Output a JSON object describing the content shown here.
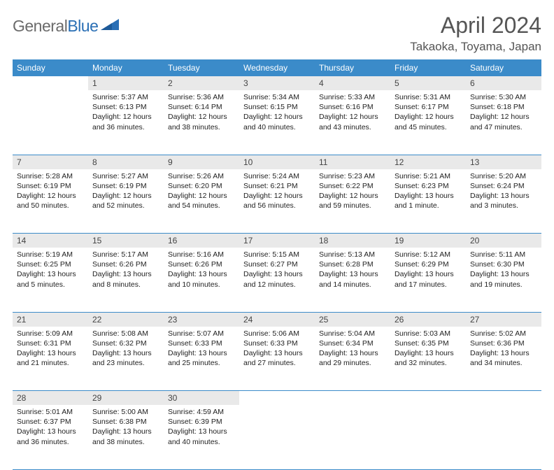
{
  "logo": {
    "text1": "General",
    "text2": "Blue"
  },
  "title": "April 2024",
  "location": "Takaoka, Toyama, Japan",
  "dayHeaders": [
    "Sunday",
    "Monday",
    "Tuesday",
    "Wednesday",
    "Thursday",
    "Friday",
    "Saturday"
  ],
  "colors": {
    "headerBg": "#3b8bc9",
    "dayBg": "#e9e9e9",
    "rule": "#3b8bc9"
  },
  "weeks": [
    [
      null,
      {
        "n": "1",
        "sr": "Sunrise: 5:37 AM",
        "ss": "Sunset: 6:13 PM",
        "d1": "Daylight: 12 hours",
        "d2": "and 36 minutes."
      },
      {
        "n": "2",
        "sr": "Sunrise: 5:36 AM",
        "ss": "Sunset: 6:14 PM",
        "d1": "Daylight: 12 hours",
        "d2": "and 38 minutes."
      },
      {
        "n": "3",
        "sr": "Sunrise: 5:34 AM",
        "ss": "Sunset: 6:15 PM",
        "d1": "Daylight: 12 hours",
        "d2": "and 40 minutes."
      },
      {
        "n": "4",
        "sr": "Sunrise: 5:33 AM",
        "ss": "Sunset: 6:16 PM",
        "d1": "Daylight: 12 hours",
        "d2": "and 43 minutes."
      },
      {
        "n": "5",
        "sr": "Sunrise: 5:31 AM",
        "ss": "Sunset: 6:17 PM",
        "d1": "Daylight: 12 hours",
        "d2": "and 45 minutes."
      },
      {
        "n": "6",
        "sr": "Sunrise: 5:30 AM",
        "ss": "Sunset: 6:18 PM",
        "d1": "Daylight: 12 hours",
        "d2": "and 47 minutes."
      }
    ],
    [
      {
        "n": "7",
        "sr": "Sunrise: 5:28 AM",
        "ss": "Sunset: 6:19 PM",
        "d1": "Daylight: 12 hours",
        "d2": "and 50 minutes."
      },
      {
        "n": "8",
        "sr": "Sunrise: 5:27 AM",
        "ss": "Sunset: 6:19 PM",
        "d1": "Daylight: 12 hours",
        "d2": "and 52 minutes."
      },
      {
        "n": "9",
        "sr": "Sunrise: 5:26 AM",
        "ss": "Sunset: 6:20 PM",
        "d1": "Daylight: 12 hours",
        "d2": "and 54 minutes."
      },
      {
        "n": "10",
        "sr": "Sunrise: 5:24 AM",
        "ss": "Sunset: 6:21 PM",
        "d1": "Daylight: 12 hours",
        "d2": "and 56 minutes."
      },
      {
        "n": "11",
        "sr": "Sunrise: 5:23 AM",
        "ss": "Sunset: 6:22 PM",
        "d1": "Daylight: 12 hours",
        "d2": "and 59 minutes."
      },
      {
        "n": "12",
        "sr": "Sunrise: 5:21 AM",
        "ss": "Sunset: 6:23 PM",
        "d1": "Daylight: 13 hours",
        "d2": "and 1 minute."
      },
      {
        "n": "13",
        "sr": "Sunrise: 5:20 AM",
        "ss": "Sunset: 6:24 PM",
        "d1": "Daylight: 13 hours",
        "d2": "and 3 minutes."
      }
    ],
    [
      {
        "n": "14",
        "sr": "Sunrise: 5:19 AM",
        "ss": "Sunset: 6:25 PM",
        "d1": "Daylight: 13 hours",
        "d2": "and 5 minutes."
      },
      {
        "n": "15",
        "sr": "Sunrise: 5:17 AM",
        "ss": "Sunset: 6:26 PM",
        "d1": "Daylight: 13 hours",
        "d2": "and 8 minutes."
      },
      {
        "n": "16",
        "sr": "Sunrise: 5:16 AM",
        "ss": "Sunset: 6:26 PM",
        "d1": "Daylight: 13 hours",
        "d2": "and 10 minutes."
      },
      {
        "n": "17",
        "sr": "Sunrise: 5:15 AM",
        "ss": "Sunset: 6:27 PM",
        "d1": "Daylight: 13 hours",
        "d2": "and 12 minutes."
      },
      {
        "n": "18",
        "sr": "Sunrise: 5:13 AM",
        "ss": "Sunset: 6:28 PM",
        "d1": "Daylight: 13 hours",
        "d2": "and 14 minutes."
      },
      {
        "n": "19",
        "sr": "Sunrise: 5:12 AM",
        "ss": "Sunset: 6:29 PM",
        "d1": "Daylight: 13 hours",
        "d2": "and 17 minutes."
      },
      {
        "n": "20",
        "sr": "Sunrise: 5:11 AM",
        "ss": "Sunset: 6:30 PM",
        "d1": "Daylight: 13 hours",
        "d2": "and 19 minutes."
      }
    ],
    [
      {
        "n": "21",
        "sr": "Sunrise: 5:09 AM",
        "ss": "Sunset: 6:31 PM",
        "d1": "Daylight: 13 hours",
        "d2": "and 21 minutes."
      },
      {
        "n": "22",
        "sr": "Sunrise: 5:08 AM",
        "ss": "Sunset: 6:32 PM",
        "d1": "Daylight: 13 hours",
        "d2": "and 23 minutes."
      },
      {
        "n": "23",
        "sr": "Sunrise: 5:07 AM",
        "ss": "Sunset: 6:33 PM",
        "d1": "Daylight: 13 hours",
        "d2": "and 25 minutes."
      },
      {
        "n": "24",
        "sr": "Sunrise: 5:06 AM",
        "ss": "Sunset: 6:33 PM",
        "d1": "Daylight: 13 hours",
        "d2": "and 27 minutes."
      },
      {
        "n": "25",
        "sr": "Sunrise: 5:04 AM",
        "ss": "Sunset: 6:34 PM",
        "d1": "Daylight: 13 hours",
        "d2": "and 29 minutes."
      },
      {
        "n": "26",
        "sr": "Sunrise: 5:03 AM",
        "ss": "Sunset: 6:35 PM",
        "d1": "Daylight: 13 hours",
        "d2": "and 32 minutes."
      },
      {
        "n": "27",
        "sr": "Sunrise: 5:02 AM",
        "ss": "Sunset: 6:36 PM",
        "d1": "Daylight: 13 hours",
        "d2": "and 34 minutes."
      }
    ],
    [
      {
        "n": "28",
        "sr": "Sunrise: 5:01 AM",
        "ss": "Sunset: 6:37 PM",
        "d1": "Daylight: 13 hours",
        "d2": "and 36 minutes."
      },
      {
        "n": "29",
        "sr": "Sunrise: 5:00 AM",
        "ss": "Sunset: 6:38 PM",
        "d1": "Daylight: 13 hours",
        "d2": "and 38 minutes."
      },
      {
        "n": "30",
        "sr": "Sunrise: 4:59 AM",
        "ss": "Sunset: 6:39 PM",
        "d1": "Daylight: 13 hours",
        "d2": "and 40 minutes."
      },
      null,
      null,
      null,
      null
    ]
  ]
}
